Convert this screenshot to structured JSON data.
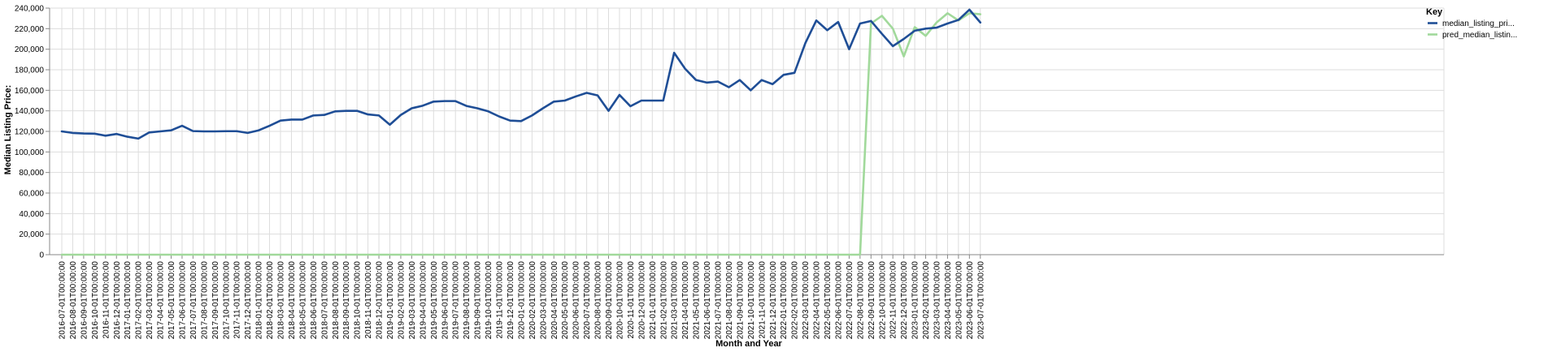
{
  "chart_data": {
    "type": "line",
    "xlabel": "Month and Year",
    "ylabel": "Median Listing Price:",
    "ylim": [
      0,
      240000
    ],
    "y_ticks": [
      0,
      20000,
      40000,
      60000,
      80000,
      100000,
      120000,
      140000,
      160000,
      180000,
      200000,
      220000,
      240000
    ],
    "grid": true,
    "legend": {
      "title": "Key",
      "placement": "top-right"
    },
    "x": [
      "2016-07-01T00:00:00",
      "2016-08-01T00:00:00",
      "2016-09-01T00:00:00",
      "2016-10-01T00:00:00",
      "2016-11-01T00:00:00",
      "2016-12-01T00:00:00",
      "2017-01-01T00:00:00",
      "2017-02-01T00:00:00",
      "2017-03-01T00:00:00",
      "2017-04-01T00:00:00",
      "2017-05-01T00:00:00",
      "2017-06-01T00:00:00",
      "2017-07-01T00:00:00",
      "2017-08-01T00:00:00",
      "2017-09-01T00:00:00",
      "2017-10-01T00:00:00",
      "2017-11-01T00:00:00",
      "2017-12-01T00:00:00",
      "2018-01-01T00:00:00",
      "2018-02-01T00:00:00",
      "2018-03-01T00:00:00",
      "2018-04-01T00:00:00",
      "2018-05-01T00:00:00",
      "2018-06-01T00:00:00",
      "2018-07-01T00:00:00",
      "2018-08-01T00:00:00",
      "2018-09-01T00:00:00",
      "2018-10-01T00:00:00",
      "2018-11-01T00:00:00",
      "2018-12-01T00:00:00",
      "2019-01-01T00:00:00",
      "2019-02-01T00:00:00",
      "2019-03-01T00:00:00",
      "2019-04-01T00:00:00",
      "2019-05-01T00:00:00",
      "2019-06-01T00:00:00",
      "2019-07-01T00:00:00",
      "2019-08-01T00:00:00",
      "2019-09-01T00:00:00",
      "2019-10-01T00:00:00",
      "2019-11-01T00:00:00",
      "2019-12-01T00:00:00",
      "2020-01-01T00:00:00",
      "2020-02-01T00:00:00",
      "2020-03-01T00:00:00",
      "2020-04-01T00:00:00",
      "2020-05-01T00:00:00",
      "2020-06-01T00:00:00",
      "2020-07-01T00:00:00",
      "2020-08-01T00:00:00",
      "2020-09-01T00:00:00",
      "2020-10-01T00:00:00",
      "2020-11-01T00:00:00",
      "2020-12-01T00:00:00",
      "2021-01-01T00:00:00",
      "2021-02-01T00:00:00",
      "2021-03-01T00:00:00",
      "2021-04-01T00:00:00",
      "2021-05-01T00:00:00",
      "2021-06-01T00:00:00",
      "2021-07-01T00:00:00",
      "2021-08-01T00:00:00",
      "2021-09-01T00:00:00",
      "2021-10-01T00:00:00",
      "2021-11-01T00:00:00",
      "2021-12-01T00:00:00",
      "2022-01-01T00:00:00",
      "2022-02-01T00:00:00",
      "2022-03-01T00:00:00",
      "2022-04-01T00:00:00",
      "2022-05-01T00:00:00",
      "2022-06-01T00:00:00",
      "2022-07-01T00:00:00",
      "2022-08-01T00:00:00",
      "2022-09-01T00:00:00",
      "2022-10-01T00:00:00",
      "2022-11-01T00:00:00",
      "2022-12-01T00:00:00",
      "2023-01-01T00:00:00",
      "2023-02-01T00:00:00",
      "2023-03-01T00:00:00",
      "2023-04-01T00:00:00",
      "2023-05-01T00:00:00",
      "2023-06-01T00:00:00",
      "2023-07-01T00:00:00"
    ],
    "series": [
      {
        "name": "median_listing_pri...",
        "color": "#1f4e96",
        "values": [
          120000,
          118500,
          118000,
          117800,
          115800,
          117500,
          114800,
          113000,
          119000,
          120000,
          121000,
          125500,
          120300,
          120000,
          120000,
          120200,
          120200,
          118500,
          121000,
          125500,
          130500,
          131500,
          131500,
          135500,
          136000,
          139500,
          140000,
          140000,
          136500,
          135500,
          126500,
          136000,
          142500,
          145000,
          149000,
          149500,
          149500,
          144800,
          142500,
          139500,
          134500,
          130500,
          130000,
          135500,
          142500,
          149000,
          150000,
          154000,
          157500,
          155000,
          140000,
          155500,
          144500,
          150000,
          150000,
          150000,
          196500,
          181000,
          170000,
          167500,
          168500,
          163000,
          170000,
          160000,
          170000,
          166000,
          175000,
          177000,
          206000,
          228000,
          218500,
          226500,
          200000,
          225000,
          227500,
          215000,
          203000,
          210000,
          218000,
          220000,
          221000,
          225000,
          228500,
          238500,
          226000
        ]
      },
      {
        "name": "pred_median_listin...",
        "color": "#a1d99b",
        "values": [
          0,
          0,
          0,
          0,
          0,
          0,
          0,
          0,
          0,
          0,
          0,
          0,
          0,
          0,
          0,
          0,
          0,
          0,
          0,
          0,
          0,
          0,
          0,
          0,
          0,
          0,
          0,
          0,
          0,
          0,
          0,
          0,
          0,
          0,
          0,
          0,
          0,
          0,
          0,
          0,
          0,
          0,
          0,
          0,
          0,
          0,
          0,
          0,
          0,
          0,
          0,
          0,
          0,
          0,
          0,
          0,
          0,
          0,
          0,
          0,
          0,
          0,
          0,
          0,
          0,
          0,
          0,
          0,
          0,
          0,
          0,
          0,
          0,
          0,
          225000,
          232500,
          220000,
          193000,
          221500,
          213000,
          226000,
          235000,
          228000,
          235000,
          234000
        ]
      }
    ]
  }
}
